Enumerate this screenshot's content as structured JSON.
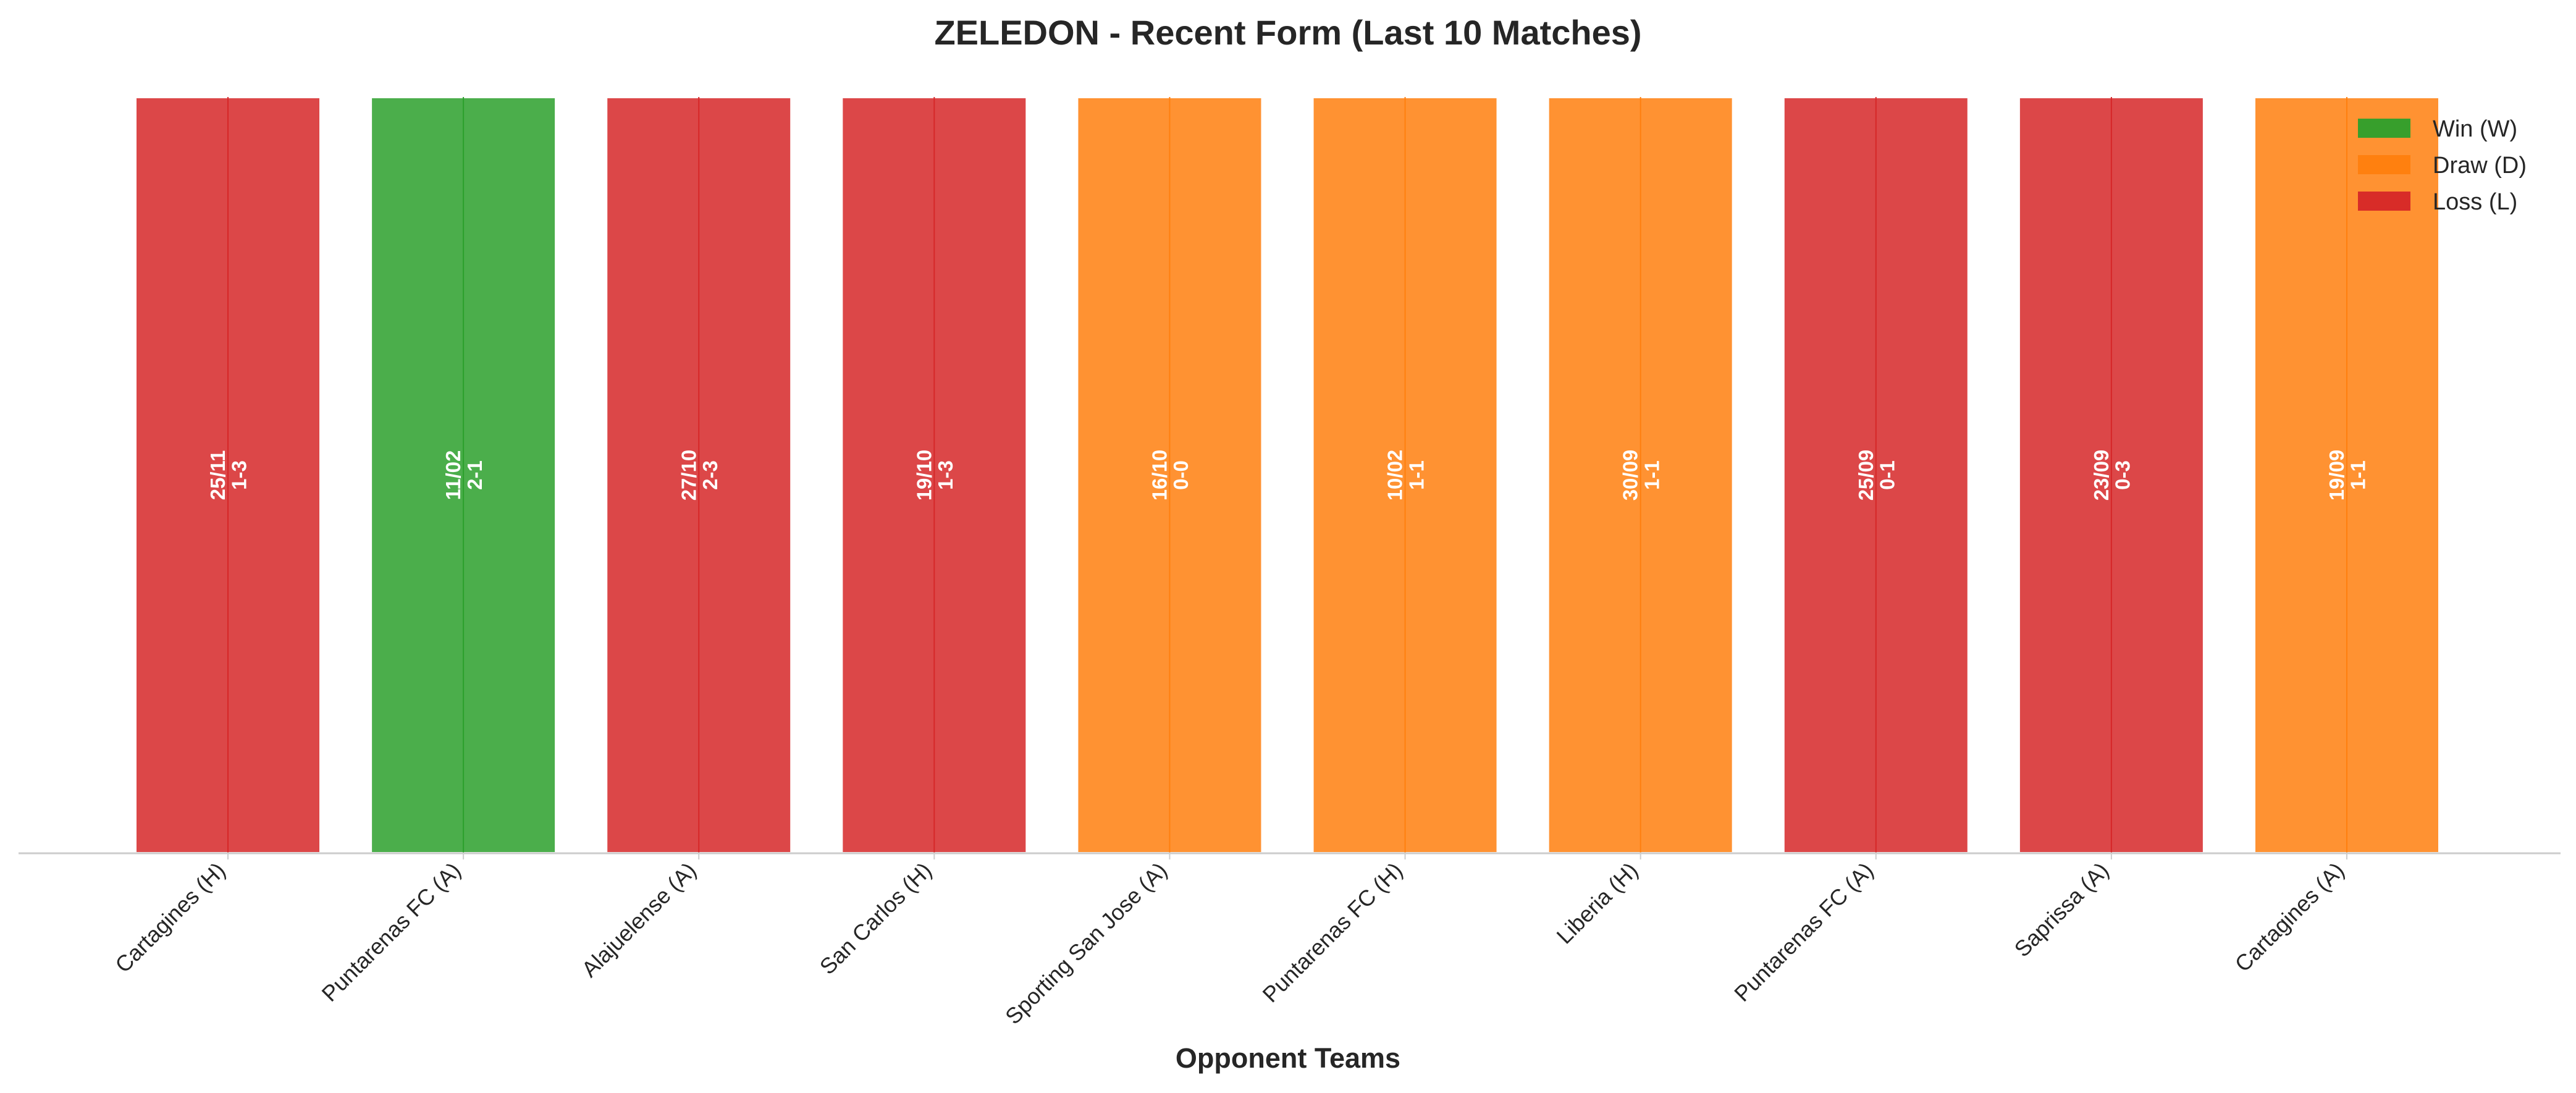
{
  "chart_data": {
    "type": "bar",
    "title": "ZELEDON - Recent Form (Last 10 Matches)",
    "xlabel": "Opponent Teams",
    "ylabel": "",
    "ylim": [
      0,
      1
    ],
    "grid": false,
    "legend_position": "top-right",
    "categories": [
      "Cartagines (H)",
      "Puntarenas FC (A)",
      "Alajuelense (A)",
      "San Carlos (H)",
      "Sporting San Jose (A)",
      "Puntarenas FC (H)",
      "Liberia (H)",
      "Puntarenas FC (A)",
      "Saprissa (A)",
      "Cartagines (A)"
    ],
    "values": [
      1,
      1,
      1,
      1,
      1,
      1,
      1,
      1,
      1,
      1
    ],
    "results": [
      "L",
      "W",
      "L",
      "L",
      "D",
      "D",
      "D",
      "L",
      "L",
      "D"
    ],
    "dates": [
      "25/11",
      "11/02",
      "27/10",
      "19/10",
      "16/10",
      "10/02",
      "30/09",
      "25/09",
      "23/09",
      "19/09"
    ],
    "scores": [
      "1-3",
      "2-1",
      "2-3",
      "1-3",
      "0-0",
      "1-1",
      "1-1",
      "0-1",
      "0-3",
      "1-1"
    ],
    "colors": {
      "W": "#2ca02c",
      "D": "#ff7f0e",
      "L": "#d62728"
    },
    "legend": [
      {
        "key": "W",
        "label": "Win (W)"
      },
      {
        "key": "D",
        "label": "Draw (D)"
      },
      {
        "key": "L",
        "label": "Loss (L)"
      }
    ]
  }
}
